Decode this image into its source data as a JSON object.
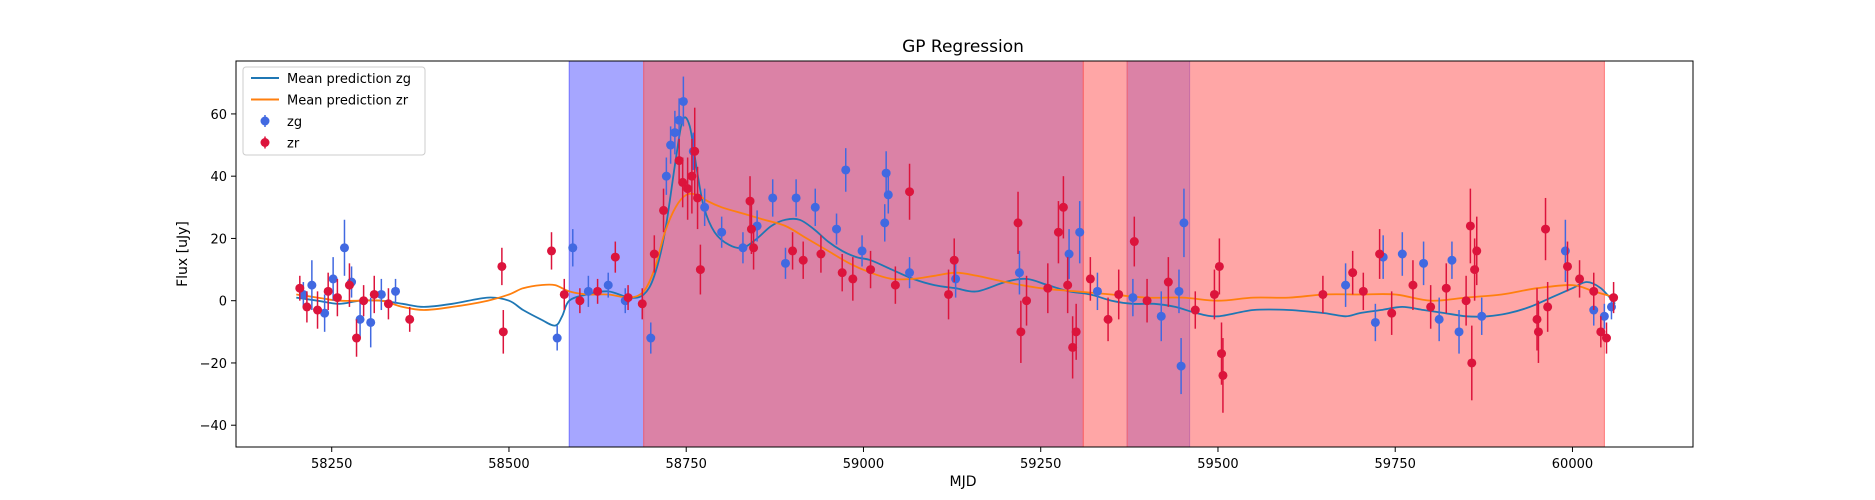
{
  "chart_data": {
    "type": "scatter",
    "title": "GP Regression",
    "xlabel": "MJD",
    "ylabel": "Flux [uJy]",
    "xlim": [
      58115,
      60170
    ],
    "ylim": [
      -47,
      77
    ],
    "xticks": [
      58250,
      58500,
      58750,
      59000,
      59250,
      59500,
      59750,
      60000
    ],
    "yticks": [
      -40,
      -20,
      0,
      20,
      40,
      60
    ],
    "grid": false,
    "legend_position": "top-left",
    "colors": {
      "zg_line": "#1f77b4",
      "zr_line": "#ff7f0e",
      "zg_points": "#4169e1",
      "zr_points": "#dc143c",
      "band_blue": "#6a6aff",
      "band_red": "#ff6a6a"
    },
    "legend": [
      {
        "label": "Mean prediction zg",
        "kind": "line",
        "color": "#1f77b4"
      },
      {
        "label": "Mean prediction zr",
        "kind": "line",
        "color": "#ff7f0e"
      },
      {
        "label": "zg",
        "kind": "marker",
        "color": "#4169e1"
      },
      {
        "label": "zr",
        "kind": "marker",
        "color": "#dc143c"
      }
    ],
    "shaded_regions": [
      {
        "color": "blue",
        "xstart": 58585,
        "xend": 58690
      },
      {
        "color": "blue",
        "xstart": 58690,
        "xend": 59310
      },
      {
        "color": "red",
        "xstart": 58690,
        "xend": 59310
      },
      {
        "color": "red",
        "xstart": 59310,
        "xend": 59372
      },
      {
        "color": "blue",
        "xstart": 59372,
        "xend": 59460
      },
      {
        "color": "red",
        "xstart": 59372,
        "xend": 60045
      }
    ],
    "series": [
      {
        "name": "Mean prediction zg",
        "kind": "line",
        "x": [
          58200,
          58230,
          58260,
          58290,
          58320,
          58350,
          58380,
          58420,
          58470,
          58500,
          58520,
          58545,
          58565,
          58575,
          58585,
          58610,
          58640,
          58670,
          58690,
          58705,
          58720,
          58735,
          58745,
          58755,
          58765,
          58775,
          58790,
          58810,
          58830,
          58850,
          58870,
          58890,
          58910,
          58930,
          58950,
          58970,
          58990,
          59010,
          59040,
          59070,
          59100,
          59130,
          59160,
          59200,
          59230,
          59260,
          59290,
          59320,
          59350,
          59380,
          59410,
          59440,
          59470,
          59500,
          59550,
          59600,
          59650,
          59680,
          59700,
          59730,
          59760,
          59790,
          59820,
          59850,
          59880,
          59910,
          59940,
          59970,
          60000,
          60020,
          60040,
          60060
        ],
        "y": [
          1,
          0,
          -1,
          0,
          0,
          -1,
          -2,
          -1,
          1,
          0,
          -3,
          -6,
          -8,
          -5,
          0,
          2,
          3,
          1,
          2,
          8,
          22,
          45,
          58,
          56,
          42,
          30,
          22,
          18,
          17,
          20,
          24,
          26,
          26,
          23,
          19,
          16,
          14,
          13,
          10,
          7,
          5,
          4,
          3,
          6,
          7,
          5,
          3,
          2,
          0,
          -1,
          -1,
          -2,
          -4,
          -5,
          -3,
          -3,
          -4,
          -5,
          -4,
          -3,
          -2,
          -3,
          -4,
          -5,
          -5,
          -4,
          -2,
          1,
          4,
          6,
          4,
          -1
        ]
      },
      {
        "name": "Mean prediction zr",
        "kind": "line",
        "x": [
          58200,
          58230,
          58260,
          58290,
          58320,
          58350,
          58380,
          58420,
          58470,
          58500,
          58520,
          58545,
          58565,
          58585,
          58610,
          58640,
          58670,
          58690,
          58705,
          58720,
          58735,
          58750,
          58765,
          58780,
          58800,
          58830,
          58860,
          58890,
          58920,
          58950,
          58980,
          59010,
          59040,
          59070,
          59100,
          59130,
          59160,
          59200,
          59250,
          59300,
          59350,
          59400,
          59450,
          59500,
          59550,
          59600,
          59650,
          59700,
          59750,
          59800,
          59850,
          59900,
          59950,
          60000,
          60030,
          60060
        ],
        "y": [
          2,
          1,
          0,
          0,
          0,
          -2,
          -3,
          -2,
          0,
          2,
          4,
          5,
          5,
          3,
          2,
          2,
          1,
          3,
          10,
          22,
          30,
          34,
          34,
          32,
          30,
          28,
          26,
          24,
          20,
          16,
          12,
          9,
          7,
          7,
          8,
          9,
          8,
          6,
          4,
          3,
          2,
          1,
          1,
          0,
          1,
          1,
          2,
          2,
          2,
          0,
          1,
          2,
          4,
          5,
          3,
          1
        ]
      },
      {
        "name": "zg",
        "kind": "errorbar",
        "points": [
          {
            "x": 58210,
            "y": 2,
            "e": 4
          },
          {
            "x": 58222,
            "y": 5,
            "e": 8
          },
          {
            "x": 58240,
            "y": -4,
            "e": 6
          },
          {
            "x": 58252,
            "y": 7,
            "e": 7
          },
          {
            "x": 58268,
            "y": 17,
            "e": 9
          },
          {
            "x": 58278,
            "y": 6,
            "e": 5
          },
          {
            "x": 58290,
            "y": -6,
            "e": 6
          },
          {
            "x": 58305,
            "y": -7,
            "e": 8
          },
          {
            "x": 58320,
            "y": 2,
            "e": 5
          },
          {
            "x": 58340,
            "y": 3,
            "e": 4
          },
          {
            "x": 58568,
            "y": -12,
            "e": 4
          },
          {
            "x": 58590,
            "y": 17,
            "e": 6
          },
          {
            "x": 58612,
            "y": 3,
            "e": 5
          },
          {
            "x": 58640,
            "y": 5,
            "e": 4
          },
          {
            "x": 58664,
            "y": 0,
            "e": 4
          },
          {
            "x": 58700,
            "y": -12,
            "e": 5
          },
          {
            "x": 58722,
            "y": 40,
            "e": 6
          },
          {
            "x": 58728,
            "y": 50,
            "e": 6
          },
          {
            "x": 58734,
            "y": 54,
            "e": 7
          },
          {
            "x": 58740,
            "y": 58,
            "e": 7
          },
          {
            "x": 58746,
            "y": 64,
            "e": 8
          },
          {
            "x": 58760,
            "y": 48,
            "e": 6
          },
          {
            "x": 58776,
            "y": 30,
            "e": 6
          },
          {
            "x": 58800,
            "y": 22,
            "e": 5
          },
          {
            "x": 58830,
            "y": 17,
            "e": 5
          },
          {
            "x": 58850,
            "y": 24,
            "e": 5
          },
          {
            "x": 58872,
            "y": 33,
            "e": 6
          },
          {
            "x": 58890,
            "y": 12,
            "e": 5
          },
          {
            "x": 58905,
            "y": 33,
            "e": 6
          },
          {
            "x": 58932,
            "y": 30,
            "e": 6
          },
          {
            "x": 58962,
            "y": 23,
            "e": 5
          },
          {
            "x": 58975,
            "y": 42,
            "e": 7
          },
          {
            "x": 58998,
            "y": 16,
            "e": 5
          },
          {
            "x": 59030,
            "y": 25,
            "e": 6
          },
          {
            "x": 59032,
            "y": 41,
            "e": 7
          },
          {
            "x": 59035,
            "y": 34,
            "e": 6
          },
          {
            "x": 59065,
            "y": 9,
            "e": 5
          },
          {
            "x": 59130,
            "y": 7,
            "e": 6
          },
          {
            "x": 59220,
            "y": 9,
            "e": 7
          },
          {
            "x": 59290,
            "y": 15,
            "e": 8
          },
          {
            "x": 59305,
            "y": 22,
            "e": 10
          },
          {
            "x": 59330,
            "y": 3,
            "e": 6
          },
          {
            "x": 59380,
            "y": 1,
            "e": 6
          },
          {
            "x": 59420,
            "y": -5,
            "e": 8
          },
          {
            "x": 59445,
            "y": 3,
            "e": 7
          },
          {
            "x": 59448,
            "y": -21,
            "e": 9
          },
          {
            "x": 59452,
            "y": 25,
            "e": 11
          },
          {
            "x": 59680,
            "y": 5,
            "e": 7
          },
          {
            "x": 59722,
            "y": -7,
            "e": 6
          },
          {
            "x": 59733,
            "y": 14,
            "e": 7
          },
          {
            "x": 59760,
            "y": 15,
            "e": 7
          },
          {
            "x": 59790,
            "y": 12,
            "e": 7
          },
          {
            "x": 59812,
            "y": -6,
            "e": 7
          },
          {
            "x": 59830,
            "y": 13,
            "e": 6
          },
          {
            "x": 59840,
            "y": -10,
            "e": 7
          },
          {
            "x": 59872,
            "y": -5,
            "e": 6
          },
          {
            "x": 59990,
            "y": 16,
            "e": 10
          },
          {
            "x": 60030,
            "y": -3,
            "e": 5
          },
          {
            "x": 60045,
            "y": -5,
            "e": 4
          },
          {
            "x": 60055,
            "y": -2,
            "e": 4
          }
        ]
      },
      {
        "name": "zr",
        "kind": "errorbar",
        "points": [
          {
            "x": 58205,
            "y": 4,
            "e": 4
          },
          {
            "x": 58215,
            "y": -2,
            "e": 5
          },
          {
            "x": 58230,
            "y": -3,
            "e": 6
          },
          {
            "x": 58245,
            "y": 3,
            "e": 6
          },
          {
            "x": 58258,
            "y": 1,
            "e": 6
          },
          {
            "x": 58275,
            "y": 5,
            "e": 7
          },
          {
            "x": 58285,
            "y": -12,
            "e": 6
          },
          {
            "x": 58295,
            "y": 0,
            "e": 5
          },
          {
            "x": 58310,
            "y": 2,
            "e": 6
          },
          {
            "x": 58330,
            "y": -1,
            "e": 5
          },
          {
            "x": 58360,
            "y": -6,
            "e": 4
          },
          {
            "x": 58490,
            "y": 11,
            "e": 6
          },
          {
            "x": 58492,
            "y": -10,
            "e": 7
          },
          {
            "x": 58560,
            "y": 16,
            "e": 6
          },
          {
            "x": 58578,
            "y": 2,
            "e": 5
          },
          {
            "x": 58600,
            "y": 0,
            "e": 4
          },
          {
            "x": 58625,
            "y": 3,
            "e": 4
          },
          {
            "x": 58650,
            "y": 14,
            "e": 5
          },
          {
            "x": 58668,
            "y": 1,
            "e": 4
          },
          {
            "x": 58688,
            "y": -1,
            "e": 5
          },
          {
            "x": 58705,
            "y": 15,
            "e": 6
          },
          {
            "x": 58718,
            "y": 29,
            "e": 7
          },
          {
            "x": 58740,
            "y": 45,
            "e": 7
          },
          {
            "x": 58745,
            "y": 38,
            "e": 8
          },
          {
            "x": 58752,
            "y": 36,
            "e": 10
          },
          {
            "x": 58758,
            "y": 40,
            "e": 12
          },
          {
            "x": 58762,
            "y": 48,
            "e": 14
          },
          {
            "x": 58766,
            "y": 33,
            "e": 10
          },
          {
            "x": 58770,
            "y": 10,
            "e": 8
          },
          {
            "x": 58840,
            "y": 32,
            "e": 8
          },
          {
            "x": 58842,
            "y": 23,
            "e": 8
          },
          {
            "x": 58845,
            "y": 17,
            "e": 7
          },
          {
            "x": 58900,
            "y": 16,
            "e": 6
          },
          {
            "x": 58915,
            "y": 13,
            "e": 6
          },
          {
            "x": 58940,
            "y": 15,
            "e": 6
          },
          {
            "x": 58970,
            "y": 9,
            "e": 6
          },
          {
            "x": 58985,
            "y": 7,
            "e": 7
          },
          {
            "x": 59010,
            "y": 10,
            "e": 6
          },
          {
            "x": 59045,
            "y": 5,
            "e": 6
          },
          {
            "x": 59065,
            "y": 35,
            "e": 9
          },
          {
            "x": 59120,
            "y": 2,
            "e": 8
          },
          {
            "x": 59128,
            "y": 13,
            "e": 7
          },
          {
            "x": 59218,
            "y": 25,
            "e": 10
          },
          {
            "x": 59222,
            "y": -10,
            "e": 10
          },
          {
            "x": 59230,
            "y": 0,
            "e": 8
          },
          {
            "x": 59260,
            "y": 4,
            "e": 8
          },
          {
            "x": 59275,
            "y": 22,
            "e": 10
          },
          {
            "x": 59282,
            "y": 30,
            "e": 10
          },
          {
            "x": 59288,
            "y": 5,
            "e": 9
          },
          {
            "x": 59295,
            "y": -15,
            "e": 10
          },
          {
            "x": 59300,
            "y": -10,
            "e": 9
          },
          {
            "x": 59320,
            "y": 7,
            "e": 7
          },
          {
            "x": 59345,
            "y": -6,
            "e": 7
          },
          {
            "x": 59360,
            "y": 2,
            "e": 8
          },
          {
            "x": 59382,
            "y": 19,
            "e": 8
          },
          {
            "x": 59400,
            "y": 0,
            "e": 7
          },
          {
            "x": 59430,
            "y": 6,
            "e": 8
          },
          {
            "x": 59468,
            "y": -3,
            "e": 6
          },
          {
            "x": 59495,
            "y": 2,
            "e": 8
          },
          {
            "x": 59502,
            "y": 11,
            "e": 9
          },
          {
            "x": 59505,
            "y": -17,
            "e": 10
          },
          {
            "x": 59507,
            "y": -24,
            "e": 12
          },
          {
            "x": 59648,
            "y": 2,
            "e": 6
          },
          {
            "x": 59690,
            "y": 9,
            "e": 7
          },
          {
            "x": 59705,
            "y": 3,
            "e": 6
          },
          {
            "x": 59728,
            "y": 15,
            "e": 8
          },
          {
            "x": 59745,
            "y": -4,
            "e": 7
          },
          {
            "x": 59775,
            "y": 5,
            "e": 8
          },
          {
            "x": 59800,
            "y": -2,
            "e": 7
          },
          {
            "x": 59822,
            "y": 4,
            "e": 8
          },
          {
            "x": 59850,
            "y": 0,
            "e": 8
          },
          {
            "x": 59856,
            "y": 24,
            "e": 12
          },
          {
            "x": 59858,
            "y": -20,
            "e": 12
          },
          {
            "x": 59862,
            "y": 10,
            "e": 10
          },
          {
            "x": 59865,
            "y": 16,
            "e": 11
          },
          {
            "x": 59950,
            "y": -6,
            "e": 10
          },
          {
            "x": 59952,
            "y": -10,
            "e": 10
          },
          {
            "x": 59962,
            "y": 23,
            "e": 10
          },
          {
            "x": 59965,
            "y": -2,
            "e": 8
          },
          {
            "x": 59993,
            "y": 11,
            "e": 8
          },
          {
            "x": 60010,
            "y": 7,
            "e": 6
          },
          {
            "x": 60030,
            "y": 3,
            "e": 6
          },
          {
            "x": 60040,
            "y": -10,
            "e": 5
          },
          {
            "x": 60048,
            "y": -12,
            "e": 5
          },
          {
            "x": 60058,
            "y": 1,
            "e": 5
          }
        ]
      }
    ]
  }
}
